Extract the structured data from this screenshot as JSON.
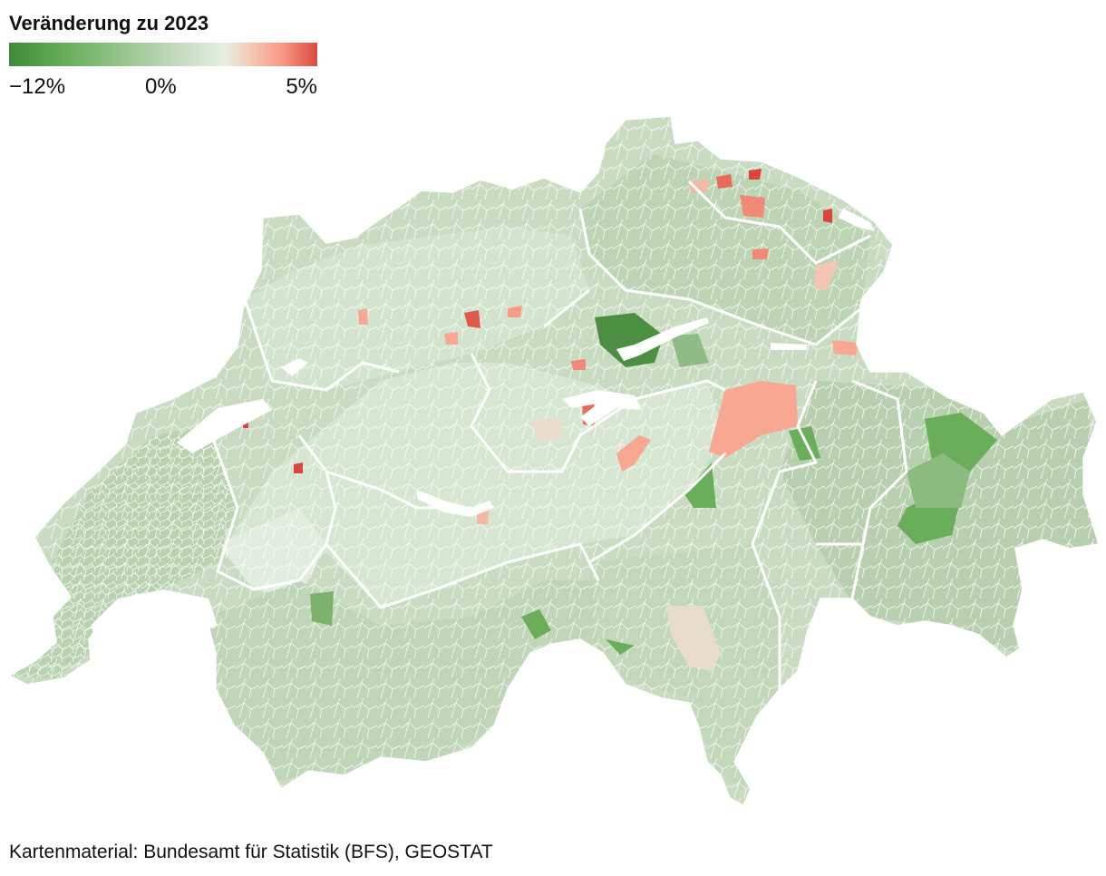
{
  "legend": {
    "title": "Veränderung zu 2023",
    "min_label": "−12%",
    "mid_label": "0%",
    "max_label": "5%",
    "scale": {
      "min": -12,
      "mid": 0,
      "max": 5,
      "unit": "%"
    },
    "colors": [
      "#3f8a38",
      "#6bb15f",
      "#b9d5b2",
      "#e6efe2",
      "#f4cbb7",
      "#f79c86",
      "#dc4b3e"
    ]
  },
  "map": {
    "subject": "Schweiz Gemeinden",
    "fill_default": "#c9dcc2",
    "border_color": "#ffffff",
    "highlight_colors": {
      "strong_decline": "#4d8f42",
      "moderate_decline": "#6aad5a",
      "increase": "#f8a892",
      "strong_increase": "#d9473c",
      "neutral_beige": "#e8dccd"
    }
  },
  "footer": {
    "source": "Kartenmaterial: Bundesamt für Statistik (BFS), GEOSTAT"
  }
}
